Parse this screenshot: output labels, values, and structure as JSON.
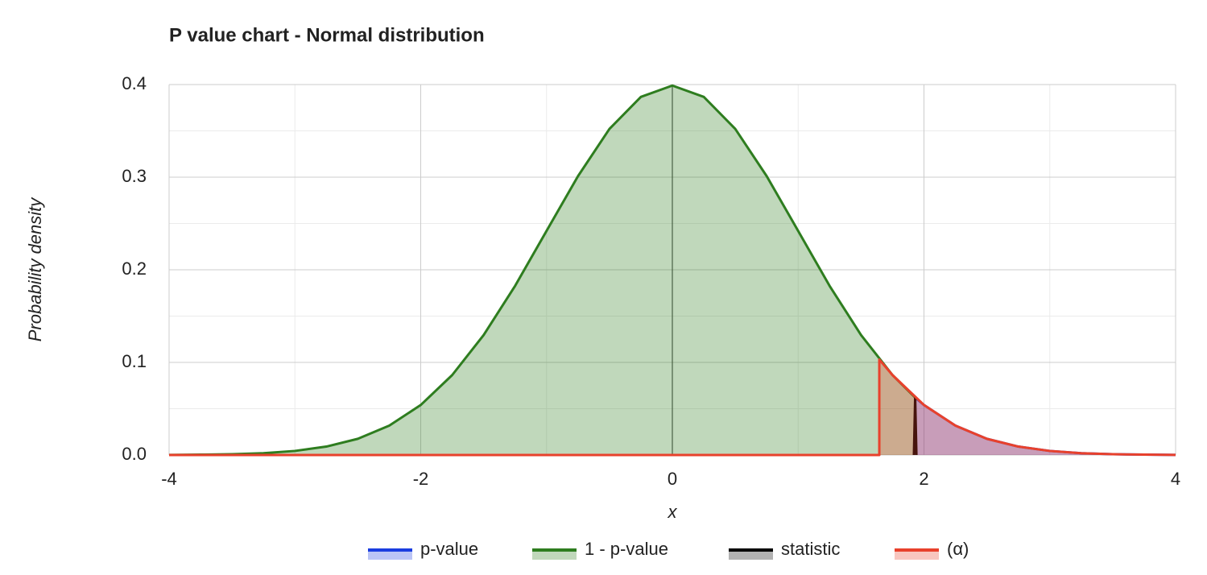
{
  "chart_data": {
    "type": "area",
    "title": "P value chart - Normal distribution",
    "x_label": "x",
    "y_label": "Probability density",
    "xlim": [
      -4,
      4
    ],
    "xticks": [
      -4,
      -2,
      0,
      2,
      4
    ],
    "xminorticks": [
      -3,
      -1,
      1,
      3
    ],
    "ylim": [
      0,
      0.4
    ],
    "yticks": [
      {
        "value": 0,
        "label": "0.0"
      },
      0.1,
      0.2,
      0.3,
      0.4
    ],
    "yminorticks": [
      0.05,
      0.15,
      0.25,
      0.35
    ],
    "grid": true,
    "legend": "bottom",
    "series": [
      {
        "name": "p-value",
        "color": "#1a3de0",
        "x": [
          1.93,
          2,
          2.25,
          2.5,
          2.75,
          3,
          3.25,
          3.5,
          3.75,
          4
        ],
        "values": [
          0.062,
          0.054,
          0.0317,
          0.0175,
          0.0091,
          0.0044,
          0.002,
          0.0009,
          0.0004,
          0.0001
        ]
      },
      {
        "name": "1 - p-value",
        "color": "#2e7d1f",
        "x": [
          -4,
          -3.75,
          -3.5,
          -3.25,
          -3,
          -2.75,
          -2.5,
          -2.25,
          -2,
          -1.75,
          -1.5,
          -1.25,
          -1,
          -0.75,
          -0.5,
          -0.25,
          0,
          0.25,
          0.5,
          0.75,
          1,
          1.25,
          1.5,
          1.75,
          1.93
        ],
        "values": [
          0.0001,
          0.0004,
          0.0009,
          0.002,
          0.0044,
          0.0091,
          0.0175,
          0.0317,
          0.054,
          0.0863,
          0.1295,
          0.1826,
          0.242,
          0.3011,
          0.3521,
          0.3867,
          0.3989,
          0.3867,
          0.3521,
          0.3011,
          0.242,
          0.1826,
          0.1295,
          0.0863,
          0.062
        ]
      },
      {
        "name": "statistic",
        "color": "#000000",
        "x": [
          1.92,
          1.93,
          1.94
        ],
        "values": [
          0,
          0.062,
          0
        ]
      },
      {
        "name": "(α)",
        "color": "#e8412c",
        "x": [
          -4,
          1.645,
          1.645,
          1.75,
          2,
          2.25,
          2.5,
          2.75,
          3,
          3.25,
          3.5,
          3.75,
          4
        ],
        "values": [
          0,
          0,
          0.1031,
          0.0863,
          0.054,
          0.0317,
          0.0175,
          0.0091,
          0.0044,
          0.002,
          0.0009,
          0.0004,
          0.0001
        ]
      }
    ]
  }
}
